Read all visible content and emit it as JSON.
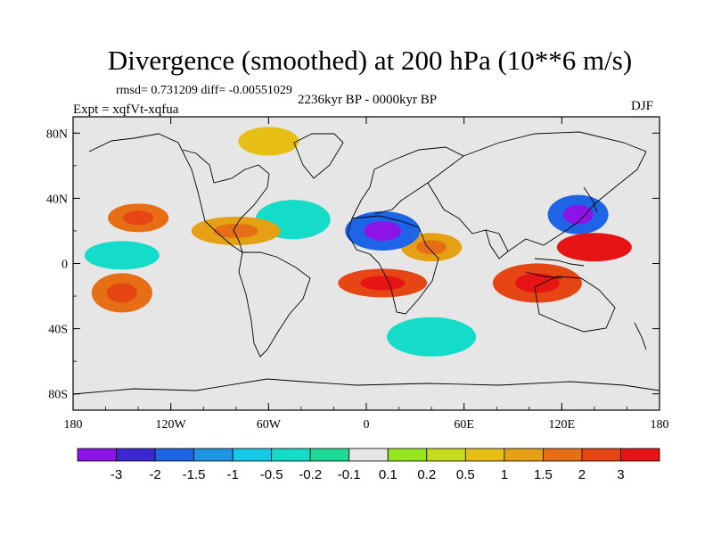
{
  "title": "Divergence (smoothed) at 200 hPa (10**6 m/s)",
  "stats_text": "rmsd= 0.731209 diff= -0.00551029",
  "period": "2236kyr BP - 0000kyr BP",
  "experiment": "Expt = xqfVt-xqfua",
  "season": "DJF",
  "map": {
    "projection": "cylindrical-equidistant",
    "lon_range": [
      -180,
      180
    ],
    "lat_range": [
      -90,
      90
    ],
    "x_ticks": [
      {
        "lon": -180,
        "label": "180"
      },
      {
        "lon": -120,
        "label": "120W"
      },
      {
        "lon": -60,
        "label": "60W"
      },
      {
        "lon": 0,
        "label": "0"
      },
      {
        "lon": 60,
        "label": "60E"
      },
      {
        "lon": 120,
        "label": "120E"
      },
      {
        "lon": 180,
        "label": "180"
      }
    ],
    "y_ticks": [
      {
        "lat": 80,
        "label": "80N"
      },
      {
        "lat": 40,
        "label": "40N"
      },
      {
        "lat": 0,
        "label": "0"
      },
      {
        "lat": -40,
        "label": "40S"
      },
      {
        "lat": -80,
        "label": "80S"
      }
    ],
    "background_color": "#e6e6e6",
    "features": [
      {
        "name": "N Pacific westerly divergence band",
        "lon": -140,
        "lat": 28,
        "value": 1.5
      },
      {
        "name": "Subtropical N Atlantic convergence",
        "lon": -45,
        "lat": 27,
        "value": -0.5
      },
      {
        "name": "Caribbean / Gulf divergence",
        "lon": -80,
        "lat": 20,
        "value": 1
      },
      {
        "name": "W Pacific convergence jet",
        "lon": 130,
        "lat": 30,
        "value": -2
      },
      {
        "name": "W Pacific warm-pool divergence",
        "lon": 140,
        "lat": 10,
        "value": 3
      },
      {
        "name": "Indian Ocean divergence",
        "lon": 105,
        "lat": -12,
        "value": 2
      },
      {
        "name": "Equatorial Africa / Arabia divergence",
        "lon": 40,
        "lat": 10,
        "value": 1
      },
      {
        "name": "Sahara convergence",
        "lon": 10,
        "lat": 20,
        "value": -2
      },
      {
        "name": "SE Atlantic divergence",
        "lon": 10,
        "lat": -12,
        "value": 2
      },
      {
        "name": "S Pacific divergence",
        "lon": -150,
        "lat": -18,
        "value": 1.5
      },
      {
        "name": "Equatorial Pacific convergence",
        "lon": -150,
        "lat": 5,
        "value": -0.5
      },
      {
        "name": "Southern Ocean convergence",
        "lon": 40,
        "lat": -45,
        "value": -0.5
      },
      {
        "name": "Arctic divergence",
        "lon": -60,
        "lat": 75,
        "value": 0.5
      }
    ]
  },
  "colorbar": {
    "colors": [
      "#8c14e6",
      "#3c28d2",
      "#1e64e6",
      "#1e96e6",
      "#14c8e6",
      "#14dcc8",
      "#1edc96",
      "#e6e6e6",
      "#96e61e",
      "#c8dc1e",
      "#e6be14",
      "#e6a014",
      "#e66e14",
      "#e64614",
      "#e61414"
    ],
    "labels": [
      "-3",
      "-2",
      "-1.5",
      "-1",
      "-0.5",
      "-0.2",
      "-0.1",
      "0.1",
      "0.2",
      "0.5",
      "1",
      "1.5",
      "2",
      "3"
    ]
  }
}
